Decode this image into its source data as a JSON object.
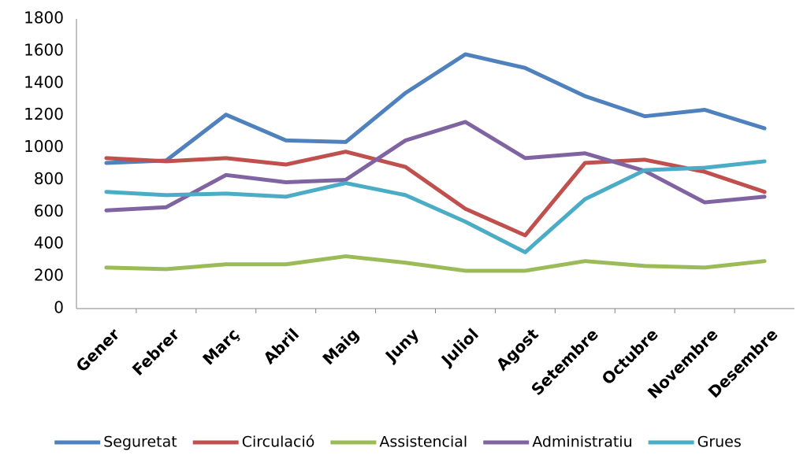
{
  "chart_data": {
    "type": "line",
    "categories": [
      "Gener",
      "Febrer",
      "Març",
      "Abril",
      "Maig",
      "Juny",
      "Juliol",
      "Agost",
      "Setembre",
      "Octubre",
      "Novembre",
      "Desembre"
    ],
    "series": [
      {
        "name": "Seguretat",
        "color": "#4f81bd",
        "values": [
          905,
          920,
          1205,
          1045,
          1035,
          1340,
          1580,
          1495,
          1320,
          1195,
          1235,
          1120
        ]
      },
      {
        "name": "Circulació",
        "color": "#c0504d",
        "values": [
          935,
          915,
          935,
          895,
          975,
          880,
          620,
          455,
          905,
          925,
          850,
          725
        ]
      },
      {
        "name": "Assistencial",
        "color": "#9bbb59",
        "values": [
          255,
          245,
          275,
          275,
          325,
          285,
          235,
          235,
          295,
          265,
          255,
          295
        ]
      },
      {
        "name": "Administratiu",
        "color": "#8064a2",
        "values": [
          610,
          630,
          830,
          785,
          800,
          1045,
          1160,
          935,
          965,
          855,
          660,
          695
        ]
      },
      {
        "name": "Grues",
        "color": "#4bacc6",
        "values": [
          725,
          705,
          715,
          695,
          780,
          705,
          540,
          350,
          680,
          860,
          875,
          915
        ]
      }
    ],
    "ylim": [
      0,
      1800
    ],
    "yticks": [
      0,
      200,
      400,
      600,
      800,
      1000,
      1200,
      1400,
      1600,
      1800
    ],
    "grid": false,
    "legend": "bottom"
  }
}
